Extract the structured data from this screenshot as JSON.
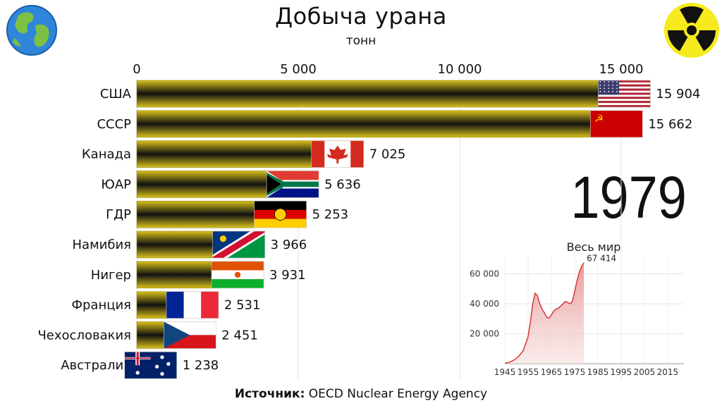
{
  "header": {
    "title": "Добыча урана",
    "subtitle": "тонн",
    "year": "1979",
    "globe_icon": "globe-icon",
    "radiation_icon": "radiation-icon"
  },
  "footer": {
    "source_label": "Источник:",
    "source_text": "OECD Nuclear Energy Agency"
  },
  "colors": {
    "bar_dark": "#111111",
    "bar_gold": "#d8c11a",
    "inset_line": "#d94040",
    "inset_fill": "#f2b8b8"
  },
  "chart_data": [
    {
      "type": "bar",
      "orientation": "horizontal",
      "title": "Добыча урана",
      "unit": "тонн",
      "categories": [
        "США",
        "СССР",
        "Канада",
        "ЮАР",
        "ГДР",
        "Намибия",
        "Нигер",
        "Франция",
        "Чехословакия",
        "Австралия"
      ],
      "values": [
        15904,
        15662,
        7025,
        5636,
        5253,
        3966,
        3931,
        2531,
        2451,
        1238
      ],
      "value_labels": [
        "15 904",
        "15 662",
        "7 025",
        "5 636",
        "5 253",
        "3 966",
        "3 931",
        "2 531",
        "2 451",
        "1 238"
      ],
      "flags": [
        "flag-usa",
        "flag-ussr",
        "flag-canada",
        "flag-south-africa",
        "flag-gdr",
        "flag-namibia",
        "flag-niger",
        "flag-france",
        "flag-czechoslovakia",
        "flag-australia"
      ],
      "xlim": [
        0,
        17000
      ],
      "xticks": [
        0,
        5000,
        10000,
        15000
      ],
      "xtick_labels": [
        "0",
        "5 000",
        "10 000",
        "15 000"
      ],
      "grid": true
    },
    {
      "type": "area",
      "title": "Весь мир",
      "x": [
        1945,
        1947,
        1949,
        1951,
        1953,
        1955,
        1956,
        1957,
        1958,
        1959,
        1960,
        1961,
        1962,
        1963,
        1964,
        1965,
        1966,
        1967,
        1968,
        1969,
        1970,
        1971,
        1972,
        1973,
        1974,
        1975,
        1976,
        1977,
        1978,
        1979
      ],
      "y": [
        300,
        1000,
        2500,
        5000,
        9000,
        18000,
        28000,
        40000,
        47000,
        45500,
        40000,
        36500,
        34000,
        31000,
        30500,
        32500,
        35000,
        36500,
        37000,
        38500,
        40000,
        41500,
        41000,
        40000,
        41500,
        48000,
        55000,
        61000,
        65000,
        67414
      ],
      "last_label": "67 414",
      "xticks": [
        1945,
        1955,
        1965,
        1975,
        1985,
        1995,
        2005,
        2015
      ],
      "xtick_labels": [
        "1945",
        "1955",
        "1965",
        "1975",
        "1985",
        "1995",
        "2005",
        "2015"
      ],
      "yticks": [
        20000,
        40000,
        60000
      ],
      "ytick_labels": [
        "20 000",
        "40 000",
        "60 000"
      ],
      "xlim": [
        1945,
        2022
      ],
      "ylim": [
        0,
        72000
      ],
      "grid": true
    }
  ]
}
